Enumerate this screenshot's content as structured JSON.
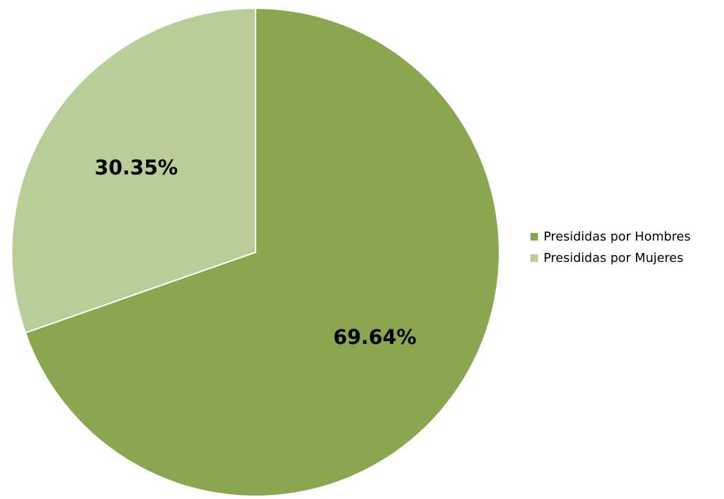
{
  "chart_data": {
    "type": "pie",
    "title": "",
    "categories": [
      "Presididas por Hombres",
      "Presididas por Mujeres"
    ],
    "values": [
      69.64,
      30.35
    ],
    "labels": [
      "69.64%",
      "30.35%"
    ],
    "colors": [
      "#8aa64f",
      "#b9cd96"
    ],
    "start_angle": "top (12 o'clock), clockwise",
    "legend_position": "right"
  }
}
